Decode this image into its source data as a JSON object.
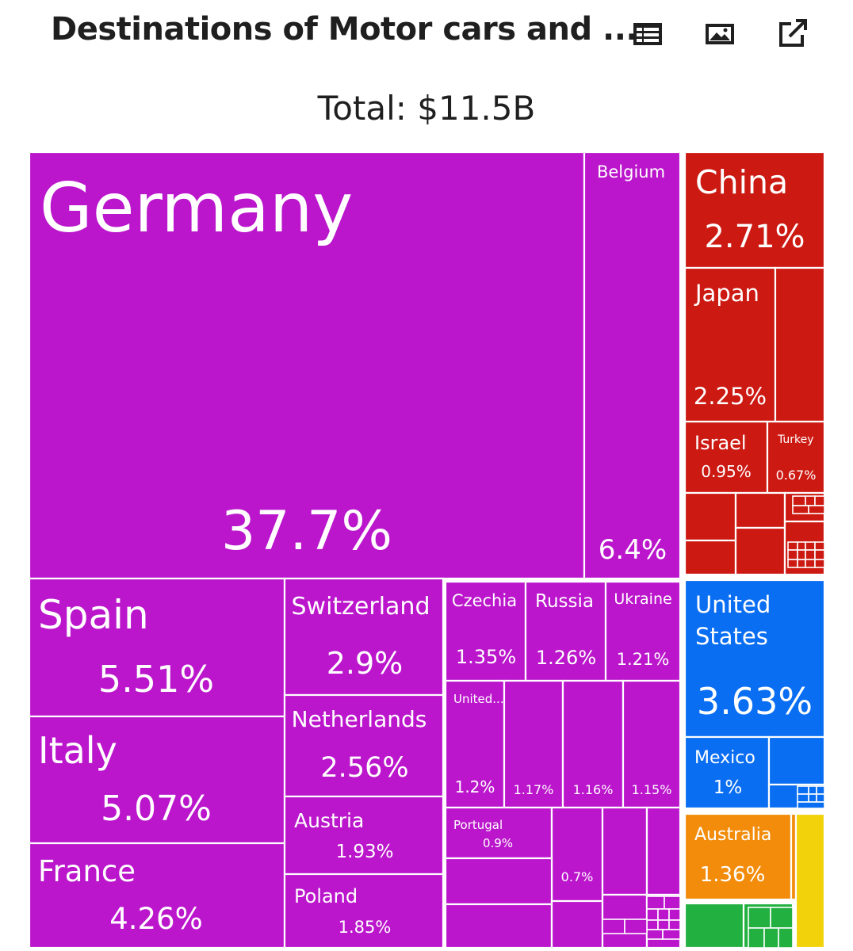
{
  "header": {
    "title": "Destinations of Motor cars and ...",
    "total_label": "Total: $11.5B",
    "toolbar": [
      {
        "name": "table-icon",
        "action": "view-data-table"
      },
      {
        "name": "image-icon",
        "action": "download-image"
      },
      {
        "name": "external-link-icon",
        "action": "open-in-new-window"
      }
    ]
  },
  "colors": {
    "europe": "#bb16cc",
    "asia": "#cc1a13",
    "north_america": "#0a6ef2",
    "oceania": "#f28c0a",
    "africa": "#22b040",
    "south_america": "#f2d20a"
  },
  "chart_data": {
    "type": "treemap",
    "title": "Destinations of Motor cars and ...",
    "total": "$11.5B",
    "cells": [
      {
        "label": "Germany",
        "value": "37.7%",
        "region": "europe"
      },
      {
        "label": "Belgium",
        "value": "6.4%",
        "region": "europe"
      },
      {
        "label": "Spain",
        "value": "5.51%",
        "region": "europe"
      },
      {
        "label": "Italy",
        "value": "5.07%",
        "region": "europe"
      },
      {
        "label": "France",
        "value": "4.26%",
        "region": "europe"
      },
      {
        "label": "Switzerland",
        "value": "2.9%",
        "region": "europe"
      },
      {
        "label": "Netherlands",
        "value": "2.56%",
        "region": "europe"
      },
      {
        "label": "Austria",
        "value": "1.93%",
        "region": "europe"
      },
      {
        "label": "Poland",
        "value": "1.85%",
        "region": "europe"
      },
      {
        "label": "Czechia",
        "value": "1.35%",
        "region": "europe"
      },
      {
        "label": "Russia",
        "value": "1.26%",
        "region": "europe"
      },
      {
        "label": "Ukraine",
        "value": "1.21%",
        "region": "europe"
      },
      {
        "label": "United...",
        "value": "1.2%",
        "region": "europe"
      },
      {
        "label": "",
        "value": "1.17%",
        "region": "europe"
      },
      {
        "label": "",
        "value": "1.16%",
        "region": "europe"
      },
      {
        "label": "",
        "value": "1.15%",
        "region": "europe"
      },
      {
        "label": "Portugal",
        "value": "0.9%",
        "region": "europe"
      },
      {
        "label": "",
        "value": "0.7%",
        "region": "europe"
      },
      {
        "label": "",
        "value": "",
        "region": "europe"
      },
      {
        "label": "",
        "value": "",
        "region": "europe"
      },
      {
        "label": "",
        "value": "",
        "region": "europe"
      },
      {
        "label": "",
        "value": "",
        "region": "europe"
      },
      {
        "label": "",
        "value": "",
        "region": "europe"
      },
      {
        "label": "",
        "value": "",
        "region": "europe"
      },
      {
        "label": "",
        "value": "",
        "region": "europe"
      },
      {
        "label": "China",
        "value": "2.71%",
        "region": "asia"
      },
      {
        "label": "Japan",
        "value": "2.25%",
        "region": "asia"
      },
      {
        "label": "",
        "value": "",
        "region": "asia"
      },
      {
        "label": "Israel",
        "value": "0.95%",
        "region": "asia"
      },
      {
        "label": "Turkey",
        "value": "0.67%",
        "region": "asia"
      },
      {
        "label": "",
        "value": "",
        "region": "asia"
      },
      {
        "label": "",
        "value": "",
        "region": "asia"
      },
      {
        "label": "",
        "value": "",
        "region": "asia"
      },
      {
        "label": "",
        "value": "",
        "region": "asia"
      },
      {
        "label": "",
        "value": "",
        "region": "asia"
      },
      {
        "label": "",
        "value": "",
        "region": "asia"
      },
      {
        "label": "United States",
        "value": "3.63%",
        "region": "north_america"
      },
      {
        "label": "Mexico",
        "value": "1%",
        "region": "north_america"
      },
      {
        "label": "",
        "value": "",
        "region": "north_america"
      },
      {
        "label": "",
        "value": "",
        "region": "north_america"
      },
      {
        "label": "Australia",
        "value": "1.36%",
        "region": "oceania"
      },
      {
        "label": "",
        "value": "",
        "region": "oceania"
      },
      {
        "label": "",
        "value": "",
        "region": "africa"
      },
      {
        "label": "",
        "value": "",
        "region": "africa"
      },
      {
        "label": "",
        "value": "",
        "region": "south_america"
      }
    ]
  }
}
